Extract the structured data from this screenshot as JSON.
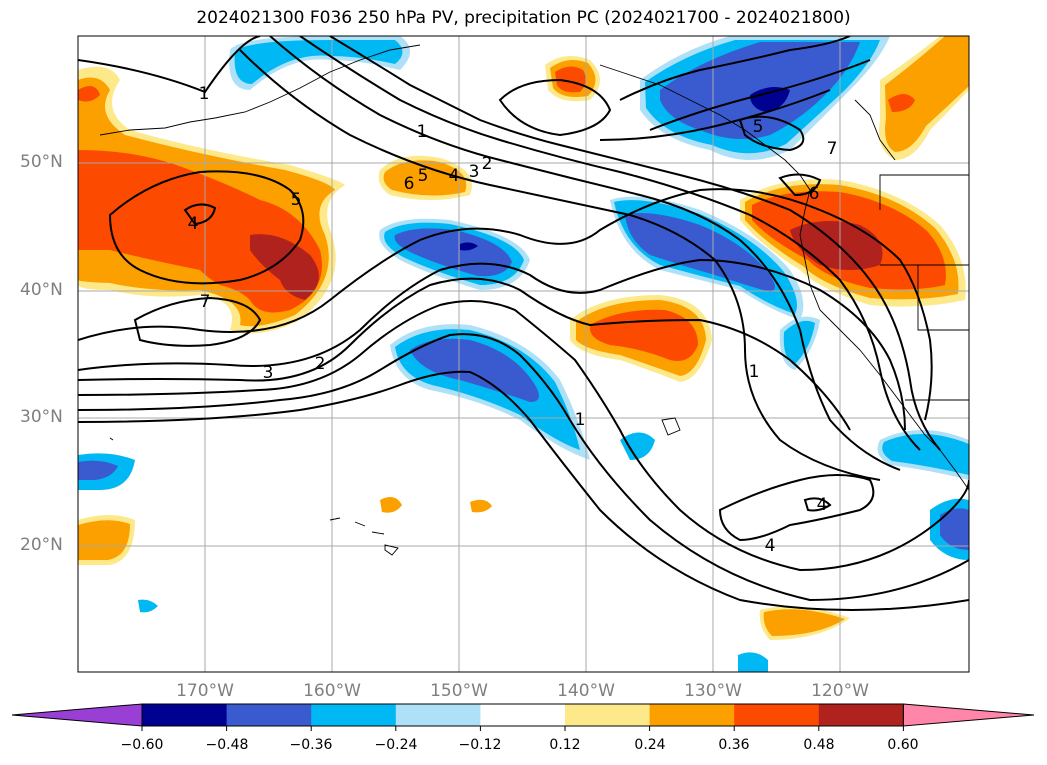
{
  "title": "2024021300 F036 250 hPa PV, precipitation PC (2024021700 - 2024021800)",
  "map": {
    "lat_labels": [
      "50°N",
      "40°N",
      "30°N",
      "20°N"
    ],
    "lon_labels": [
      "170°W",
      "160°W",
      "150°W",
      "140°W",
      "130°W",
      "120°W"
    ],
    "contour_labels": [
      "1",
      "1",
      "1",
      "1",
      "2",
      "2",
      "3",
      "3",
      "4",
      "4",
      "4",
      "5",
      "5",
      "5",
      "6",
      "6",
      "7",
      "7",
      "4"
    ]
  },
  "colorbar": {
    "tick_labels": [
      "−0.60",
      "−0.48",
      "−0.36",
      "−0.24",
      "−0.12",
      "0.12",
      "0.24",
      "0.36",
      "0.48",
      "0.60"
    ],
    "colors": [
      "#9a3fd6",
      "#000091",
      "#3a5bd0",
      "#00b8f4",
      "#aee0f8",
      "#ffffff",
      "#fde98a",
      "#fca000",
      "#fc4a00",
      "#b0221e",
      "#ff86a8"
    ]
  }
}
